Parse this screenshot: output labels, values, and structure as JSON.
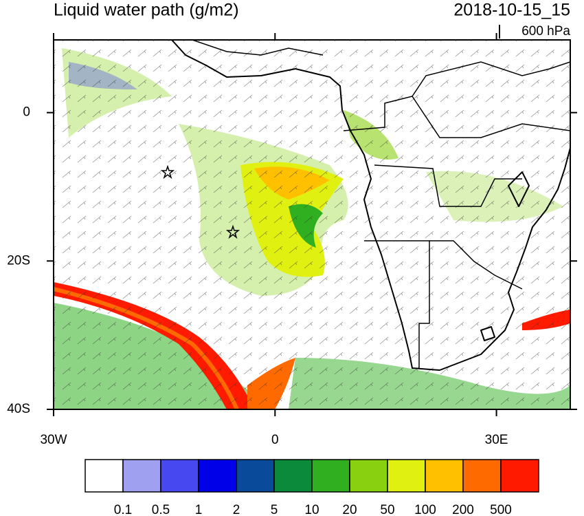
{
  "title": "Liquid water path (g/m2)",
  "time": "2018-10-15_15",
  "level": "600 hPa",
  "map": {
    "lonlim": [
      -30,
      40
    ],
    "latlim": [
      -40,
      9.8
    ],
    "lonticks": [
      {
        "value": -30,
        "label": "30W"
      },
      0,
      {
        "value": 30,
        "label": "30E"
      }
    ],
    "latticks": [
      0,
      {
        "value": -20,
        "label": "20S"
      },
      {
        "value": -40,
        "label": "40S"
      }
    ]
  },
  "colorbar": {
    "levels": [
      0.1,
      0.5,
      1,
      2,
      5,
      10,
      20,
      50,
      100,
      200,
      500
    ],
    "colors": [
      "#ffffff",
      "#a0a0f0",
      "#4848f0",
      "#0000e8",
      "#0a4a9a",
      "#0a8a3a",
      "#30b020",
      "#88d010",
      "#e0f010",
      "#ffc000",
      "#ff6a00",
      "#ff1a00"
    ]
  }
}
